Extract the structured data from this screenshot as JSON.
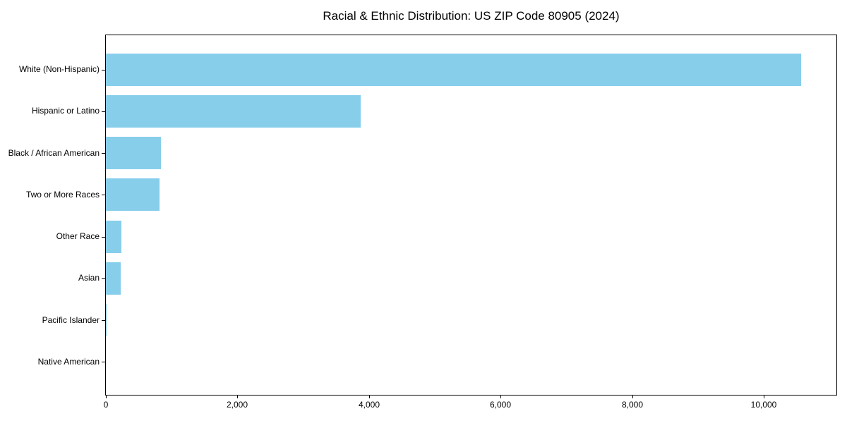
{
  "chart_data": {
    "type": "bar",
    "orientation": "horizontal",
    "title": "Racial & Ethnic Distribution: US ZIP Code 80905 (2024)",
    "categories": [
      "White (Non-Hispanic)",
      "Hispanic or Latino",
      "Black / African American",
      "Two or More Races",
      "Other Race",
      "Asian",
      "Pacific Islander",
      "Native American"
    ],
    "values": [
      10560,
      3870,
      840,
      815,
      235,
      225,
      15,
      0
    ],
    "xlabel": "",
    "ylabel": "",
    "xlim": [
      0,
      11100
    ],
    "x_ticks": [
      0,
      2000,
      4000,
      6000,
      8000,
      10000
    ],
    "x_tick_labels": [
      "0",
      "2,000",
      "4,000",
      "6,000",
      "8,000",
      "10,000"
    ],
    "grid": false,
    "legend": null,
    "sort_order": "descending"
  },
  "colors": {
    "bar": "#87CEEB",
    "text": "#000000",
    "spine": "#000000",
    "background": "#ffffff"
  }
}
